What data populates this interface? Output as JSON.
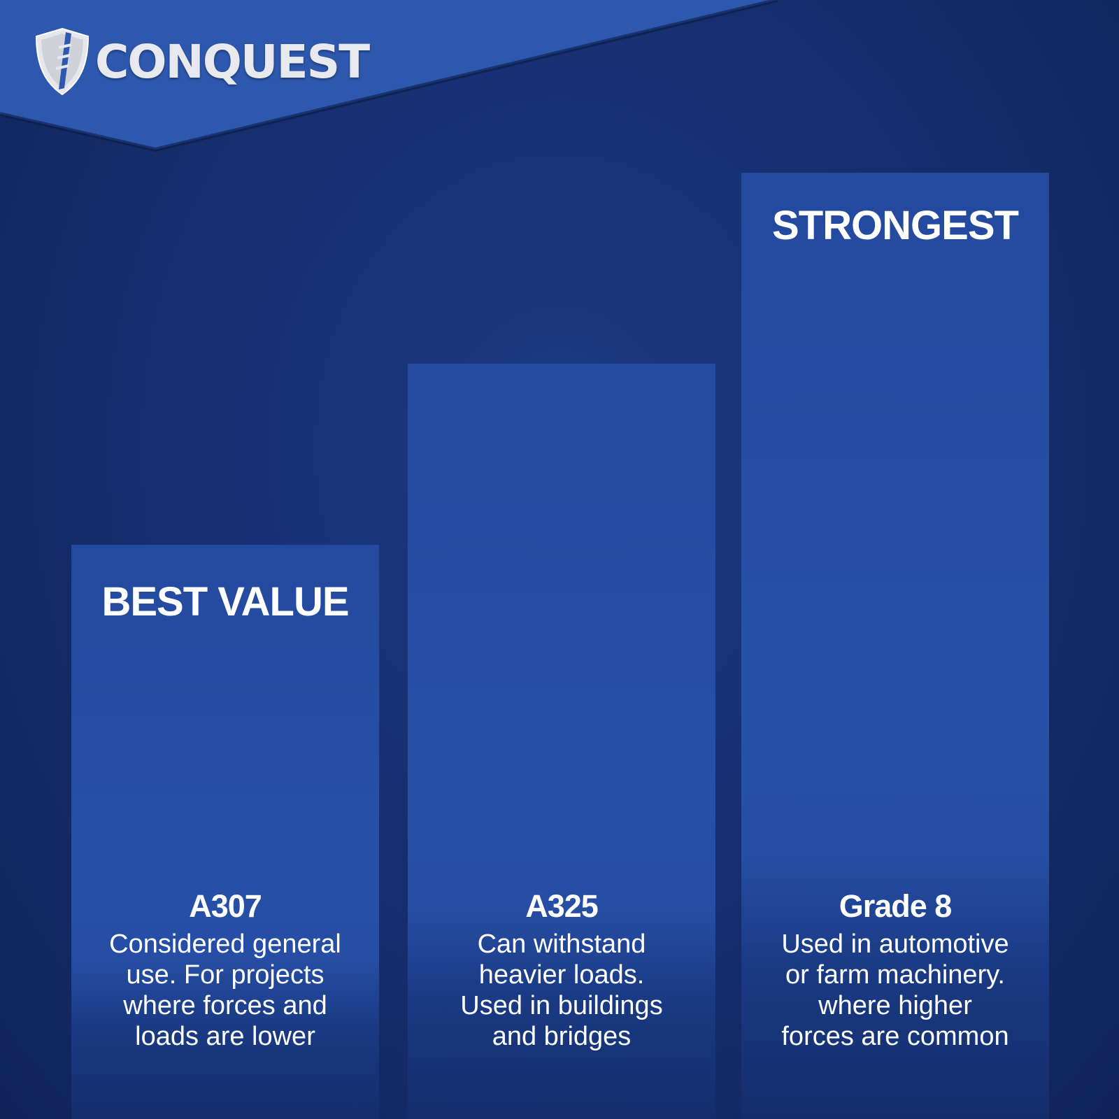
{
  "brand": {
    "name": "CONQUEST",
    "icon": "shield-bolt-logo",
    "color": "#2d58ae"
  },
  "columns": [
    {
      "badge": "BEST VALUE",
      "name": "A307",
      "description": "Considered general\nuse. For projects\nwhere forces and\nloads are lower"
    },
    {
      "badge": "",
      "name": "A325",
      "description": "Can withstand\nheavier loads.\nUsed in buildings\nand bridges"
    },
    {
      "badge": "STRONGEST",
      "name": "Grade 8",
      "description": "Used in automotive\nor farm machinery.\nwhere higher\nforces are common"
    }
  ]
}
